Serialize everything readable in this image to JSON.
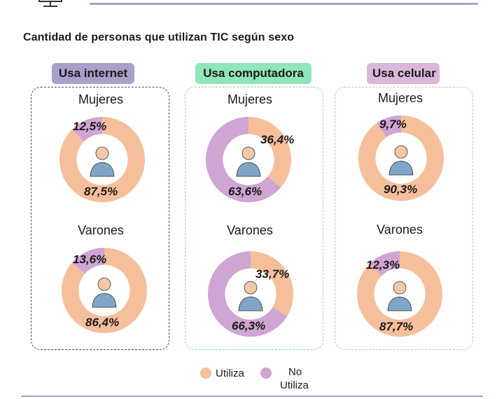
{
  "title": "Cantidad de personas que utilizan TIC según sexo",
  "colors": {
    "utiliza": "#f5bf9b",
    "no_utiliza": "#cfa5d3",
    "internet": "#a99fc9",
    "computadora": "#8fe6b8",
    "celular": "#dcb7dc"
  },
  "panels": {
    "internet": {
      "label": "Usa internet",
      "mujeres": "Mujeres",
      "varones": "Varones"
    },
    "computadora": {
      "label": "Usa computadora",
      "mujeres": "Mujeres",
      "varones": "Varones"
    },
    "celular": {
      "label": "Usa celular",
      "mujeres": "Mujeres",
      "varones": "Varones"
    }
  },
  "legend": {
    "utiliza": "Utiliza",
    "no_utiliza_1": "No",
    "no_utiliza_2": "Utiliza"
  },
  "chart_data": [
    {
      "type": "pie",
      "title": "Usa internet - Mujeres",
      "categories": [
        "Utiliza",
        "No Utiliza"
      ],
      "values": [
        87.5,
        12.5
      ],
      "labels": [
        "87,5%",
        "12,5%"
      ]
    },
    {
      "type": "pie",
      "title": "Usa internet - Varones",
      "categories": [
        "Utiliza",
        "No Utiliza"
      ],
      "values": [
        86.4,
        13.6
      ],
      "labels": [
        "86,4%",
        "13,6%"
      ]
    },
    {
      "type": "pie",
      "title": "Usa computadora - Mujeres",
      "categories": [
        "Utiliza",
        "No Utiliza"
      ],
      "values": [
        36.4,
        63.6
      ],
      "labels": [
        "36,4%",
        "63,6%"
      ]
    },
    {
      "type": "pie",
      "title": "Usa computadora - Varones",
      "categories": [
        "Utiliza",
        "No Utiliza"
      ],
      "values": [
        33.7,
        66.3
      ],
      "labels": [
        "33,7%",
        "66,3%"
      ]
    },
    {
      "type": "pie",
      "title": "Usa celular - Mujeres",
      "categories": [
        "Utiliza",
        "No Utiliza"
      ],
      "values": [
        90.3,
        9.7
      ],
      "labels": [
        "90,3%",
        "9,7%"
      ]
    },
    {
      "type": "pie",
      "title": "Usa celular - Varones",
      "categories": [
        "Utiliza",
        "No Utiliza"
      ],
      "values": [
        87.7,
        12.3
      ],
      "labels": [
        "87,7%",
        "12,3%"
      ]
    }
  ]
}
